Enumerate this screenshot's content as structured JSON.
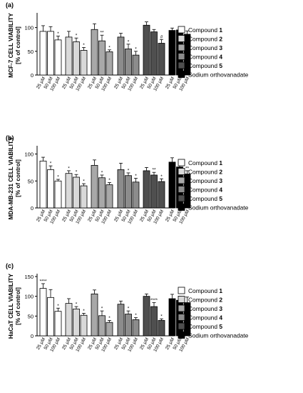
{
  "legend": {
    "entries": [
      {
        "text": "Compound ",
        "num": "1",
        "fill": "#ffffff"
      },
      {
        "text": "Compound ",
        "num": "2",
        "fill": "#d9d9d9"
      },
      {
        "text": "Compound ",
        "num": "3",
        "fill": "#a8a8a8"
      },
      {
        "text": "Compound ",
        "num": "4",
        "fill": "#8c8c8c"
      },
      {
        "text": "Compound ",
        "num": "5",
        "fill": "#4f4f4f"
      },
      {
        "text": "Sodium orthovanadate",
        "num": "",
        "fill": "#000000"
      }
    ]
  },
  "chart_data": [
    {
      "type": "bar",
      "panel_label": "(a)",
      "ylabel_line1": "MCF-7 CELL VIABILITY",
      "ylabel_line2": "[% of control]",
      "ylim": [
        0,
        125
      ],
      "yticks": [
        "0",
        "50",
        "100"
      ],
      "tick_values": [
        0,
        50,
        100
      ],
      "categories": [
        "25 µM",
        "50 µM",
        "100 µM"
      ],
      "series": [
        {
          "name": "Compound 1",
          "values": [
            92,
            92,
            74
          ],
          "errors": [
            12,
            10,
            8
          ],
          "sig": [
            "",
            "",
            "*"
          ]
        },
        {
          "name": "Compound 2",
          "values": [
            80,
            70,
            52
          ],
          "errors": [
            12,
            8,
            6
          ],
          "sig": [
            "",
            "*",
            "*"
          ]
        },
        {
          "name": "Compound 3",
          "values": [
            96,
            72,
            49
          ],
          "errors": [
            12,
            12,
            4
          ],
          "sig": [
            "",
            "**",
            "*"
          ]
        },
        {
          "name": "Compound 4",
          "values": [
            80,
            55,
            42
          ],
          "errors": [
            8,
            10,
            8
          ],
          "sig": [
            "",
            "*",
            "*"
          ]
        },
        {
          "name": "Compound 5",
          "values": [
            105,
            91,
            67
          ],
          "errors": [
            7,
            5,
            8
          ],
          "sig": [
            "",
            "",
            "#"
          ]
        },
        {
          "name": "Sodium orthovanadate",
          "values": [
            94,
            95,
            86
          ],
          "errors": [
            5,
            3,
            7
          ],
          "sig": [
            "",
            "",
            ""
          ]
        }
      ]
    },
    {
      "type": "bar",
      "panel_label": "(b)",
      "ylabel_line1": "MDA-MB-231 CELL VIABILITY",
      "ylabel_line2": "[% of control]",
      "ylim": [
        0,
        110
      ],
      "yticks": [
        "0",
        "50",
        "100"
      ],
      "tick_values": [
        0,
        50,
        100
      ],
      "categories": [
        "25 µM",
        "50 µM",
        "100 µM"
      ],
      "series": [
        {
          "name": "Compound 1",
          "values": [
            87,
            71,
            50
          ],
          "errors": [
            7,
            7,
            3
          ],
          "sig": [
            "",
            "*",
            "*"
          ]
        },
        {
          "name": "Compound 2",
          "values": [
            64,
            57,
            41
          ],
          "errors": [
            5,
            5,
            4
          ],
          "sig": [
            "*",
            "*",
            "*"
          ]
        },
        {
          "name": "Compound 3",
          "values": [
            79,
            56,
            43
          ],
          "errors": [
            10,
            5,
            4
          ],
          "sig": [
            "",
            "*",
            "*"
          ]
        },
        {
          "name": "Compound 4",
          "values": [
            71,
            60,
            48
          ],
          "errors": [
            12,
            5,
            7
          ],
          "sig": [
            "",
            "*",
            "*"
          ]
        },
        {
          "name": "Compound 5",
          "values": [
            69,
            61,
            49
          ],
          "errors": [
            6,
            5,
            5
          ],
          "sig": [
            "",
            "**",
            "*"
          ]
        },
        {
          "name": "Sodium orthovanadate",
          "values": [
            85,
            76,
            63
          ],
          "errors": [
            8,
            9,
            6
          ],
          "sig": [
            "",
            "",
            "**"
          ]
        }
      ]
    },
    {
      "type": "bar",
      "panel_label": "(c)",
      "ylabel_line1": "HaCaT CELL VIABILITY",
      "ylabel_line2": "[% of control]",
      "ylim": [
        0,
        150
      ],
      "yticks": [
        "0",
        "50",
        "100",
        "150"
      ],
      "tick_values": [
        0,
        50,
        100,
        150
      ],
      "categories": [
        "25 µM",
        "50 µM",
        "100 µM"
      ],
      "series": [
        {
          "name": "Compound 1",
          "values": [
            120,
            97,
            62
          ],
          "errors": [
            12,
            20,
            8
          ],
          "sig": [
            "****",
            "",
            "*"
          ]
        },
        {
          "name": "Compound 2",
          "values": [
            82,
            68,
            52
          ],
          "errors": [
            12,
            6,
            5
          ],
          "sig": [
            "",
            "*",
            "*"
          ]
        },
        {
          "name": "Compound 3",
          "values": [
            106,
            51,
            34
          ],
          "errors": [
            10,
            12,
            5
          ],
          "sig": [
            "",
            "*",
            "*"
          ]
        },
        {
          "name": "Compound 4",
          "values": [
            80,
            55,
            41
          ],
          "errors": [
            8,
            8,
            5
          ],
          "sig": [
            "",
            "*",
            "*"
          ]
        },
        {
          "name": "Compound 5",
          "values": [
            100,
            74,
            39
          ],
          "errors": [
            6,
            10,
            4
          ],
          "sig": [
            "",
            "****",
            "*"
          ]
        },
        {
          "name": "Sodium orthovanadate",
          "values": [
            94,
            90,
            84
          ],
          "errors": [
            11,
            10,
            14
          ],
          "sig": [
            "",
            "",
            ""
          ]
        }
      ]
    }
  ]
}
